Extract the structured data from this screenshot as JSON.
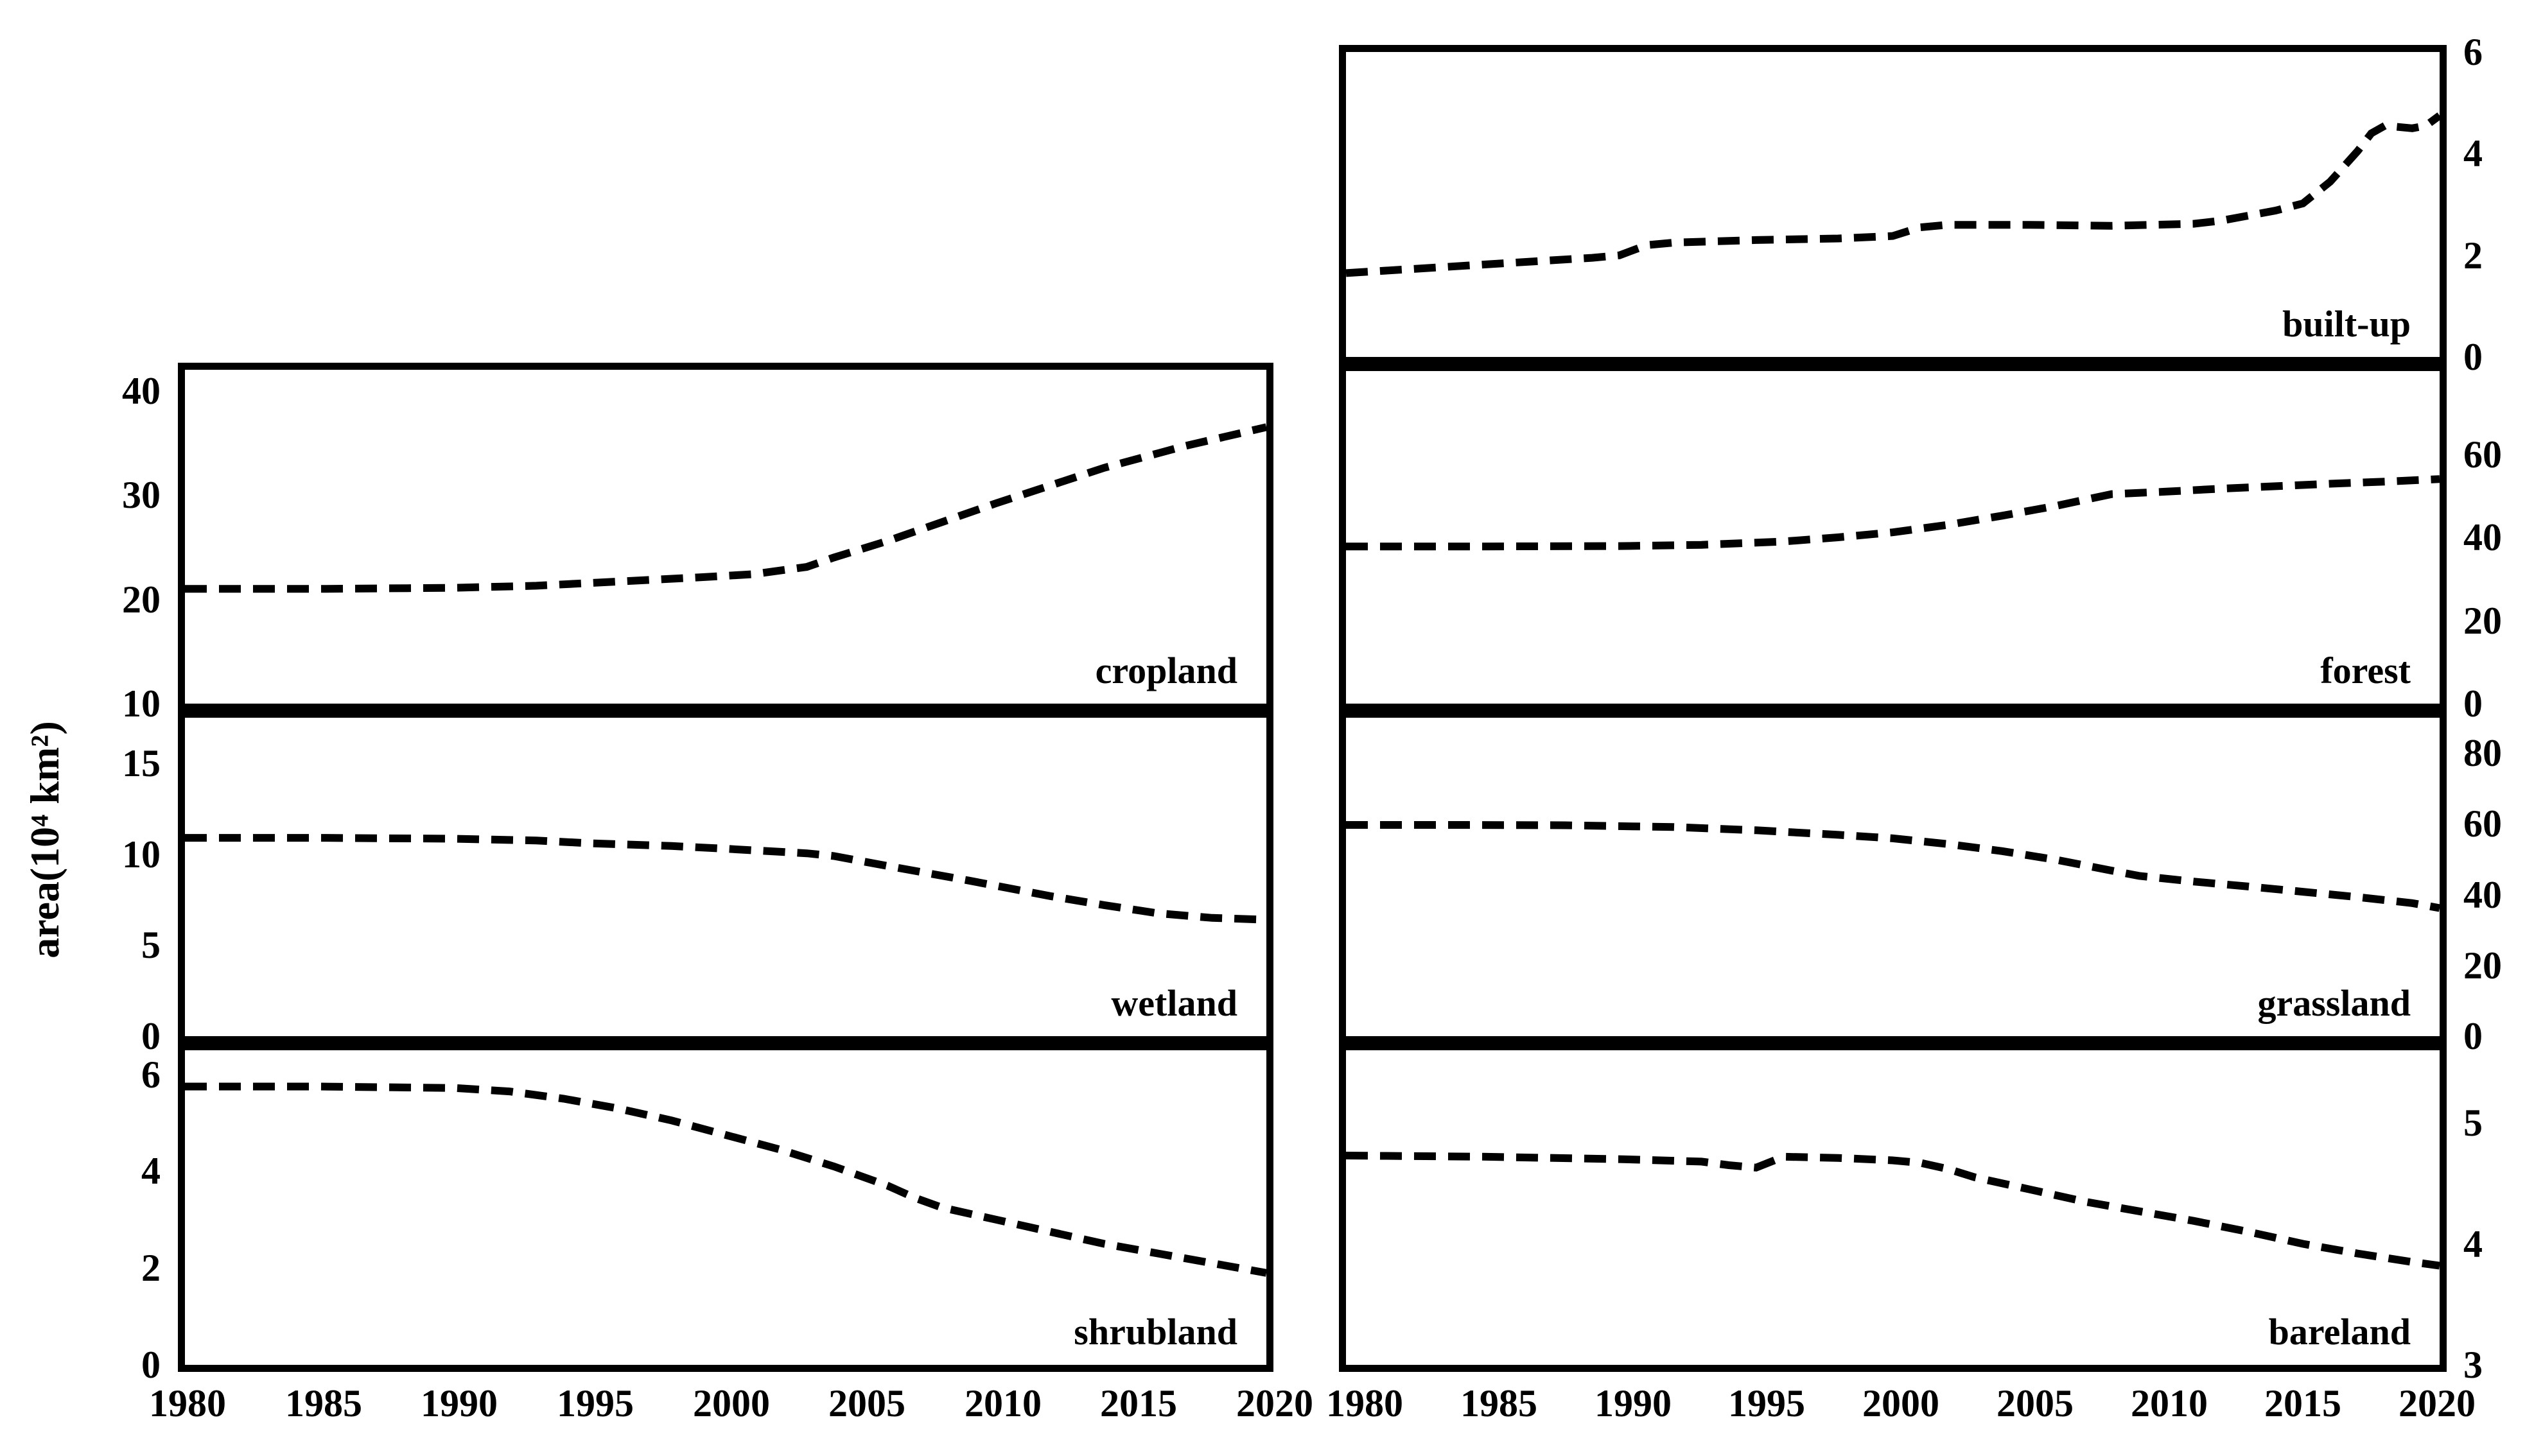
{
  "figure_background": "#ffffff",
  "ylabel": "area(10⁴ km²)",
  "x_axis": {
    "range": [
      1980,
      2020
    ],
    "ticks": [
      1980,
      1985,
      1990,
      1995,
      2000,
      2005,
      2010,
      2015,
      2020
    ]
  },
  "chart_data": [
    {
      "type": "line",
      "panel": "cropland",
      "label": "cropland",
      "axis_side": "left",
      "line_style": "dashed",
      "color": "#000000",
      "ylim": [
        10,
        42
      ],
      "yticks": [
        10,
        20,
        30,
        40
      ],
      "x": [
        1980,
        1985,
        1990,
        1993,
        1996,
        1999,
        2001,
        2003,
        2004,
        2006,
        2008,
        2010,
        2012,
        2014,
        2016,
        2017,
        2018,
        2019,
        2020
      ],
      "y": [
        21.0,
        21.0,
        21.1,
        21.3,
        21.7,
        22.1,
        22.4,
        23.1,
        24.0,
        25.6,
        27.4,
        29.2,
        30.9,
        32.6,
        34.0,
        34.7,
        35.3,
        35.9,
        36.5
      ]
    },
    {
      "type": "line",
      "panel": "wetland",
      "label": "wetland",
      "axis_side": "left",
      "line_style": "dashed",
      "color": "#000000",
      "ylim": [
        0,
        17.5
      ],
      "yticks": [
        0,
        5,
        10,
        15
      ],
      "x": [
        1980,
        1985,
        1990,
        1993,
        1995,
        1998,
        2000,
        2003,
        2004,
        2006,
        2009,
        2012,
        2014,
        2016,
        2018,
        2020
      ],
      "y": [
        10.9,
        10.9,
        10.85,
        10.75,
        10.6,
        10.45,
        10.3,
        10.05,
        9.9,
        9.35,
        8.55,
        7.7,
        7.2,
        6.75,
        6.5,
        6.4
      ]
    },
    {
      "type": "line",
      "panel": "shrubland",
      "label": "shrubland",
      "axis_side": "left",
      "line_style": "dashed",
      "color": "#000000",
      "ylim": [
        0,
        6.5
      ],
      "yticks": [
        0,
        2,
        4,
        6
      ],
      "x": [
        1980,
        1985,
        1990,
        1992,
        1994,
        1996,
        1998,
        2000,
        2002,
        2004,
        2005,
        2006,
        2007,
        2008,
        2010,
        2012,
        2014,
        2016,
        2018,
        2020
      ],
      "y": [
        5.75,
        5.75,
        5.72,
        5.65,
        5.5,
        5.3,
        5.05,
        4.75,
        4.45,
        4.1,
        3.9,
        3.7,
        3.45,
        3.25,
        3.0,
        2.75,
        2.5,
        2.3,
        2.1,
        1.9
      ]
    },
    {
      "type": "line",
      "panel": "built-up",
      "label": "built-up",
      "axis_side": "right",
      "line_style": "dashed",
      "color": "#000000",
      "ylim": [
        0,
        6
      ],
      "yticks": [
        0,
        2,
        4,
        6
      ],
      "x": [
        1980,
        1983,
        1986,
        1989,
        1990,
        1991,
        1992,
        1995,
        1998,
        2000,
        2001,
        2002,
        2005,
        2008,
        2011,
        2012,
        2013,
        2014,
        2015,
        2016,
        2017,
        2017.5,
        2018,
        2019,
        2019.5,
        2020
      ],
      "y": [
        1.65,
        1.75,
        1.85,
        1.95,
        2.0,
        2.2,
        2.25,
        2.3,
        2.33,
        2.38,
        2.55,
        2.6,
        2.6,
        2.58,
        2.62,
        2.68,
        2.78,
        2.88,
        3.02,
        3.45,
        4.05,
        4.4,
        4.55,
        4.5,
        4.55,
        4.75
      ]
    },
    {
      "type": "line",
      "panel": "forest",
      "label": "forest",
      "axis_side": "right",
      "line_style": "dashed",
      "color": "#000000",
      "ylim": [
        0,
        80
      ],
      "yticks": [
        0,
        20,
        40,
        60
      ],
      "x": [
        1980,
        1985,
        1990,
        1993,
        1996,
        1998,
        2000,
        2002,
        2004,
        2006,
        2007,
        2008,
        2010,
        2012,
        2014,
        2016,
        2018,
        2020
      ],
      "y": [
        37.8,
        37.8,
        37.9,
        38.2,
        39.0,
        40.0,
        41.2,
        43.0,
        45.2,
        47.6,
        49.0,
        50.4,
        51.0,
        51.7,
        52.3,
        52.9,
        53.4,
        54.0
      ]
    },
    {
      "type": "line",
      "panel": "grassland",
      "label": "grassland",
      "axis_side": "right",
      "line_style": "dashed",
      "color": "#000000",
      "ylim": [
        0,
        90
      ],
      "yticks": [
        0,
        20,
        40,
        60,
        80
      ],
      "x": [
        1980,
        1984,
        1988,
        1992,
        1995,
        1998,
        2000,
        2002,
        2004,
        2006,
        2008,
        2009,
        2011,
        2013,
        2015,
        2017,
        2019,
        2020
      ],
      "y": [
        59.7,
        59.7,
        59.6,
        59.1,
        58.2,
        56.9,
        55.9,
        54.3,
        52.3,
        49.8,
        46.8,
        45.3,
        43.7,
        42.3,
        40.8,
        39.3,
        37.6,
        36.2
      ]
    },
    {
      "type": "line",
      "panel": "bareland",
      "label": "bareland",
      "axis_side": "right",
      "line_style": "dashed",
      "color": "#000000",
      "ylim": [
        3,
        5.6
      ],
      "yticks": [
        3,
        4,
        5
      ],
      "x": [
        1980,
        1985,
        1990,
        1993,
        1994,
        1995,
        1996,
        1998,
        2000,
        2001,
        2002,
        2003,
        2005,
        2007,
        2009,
        2011,
        2013,
        2015,
        2017,
        2019,
        2020
      ],
      "y": [
        4.73,
        4.72,
        4.7,
        4.68,
        4.65,
        4.63,
        4.72,
        4.71,
        4.69,
        4.67,
        4.62,
        4.55,
        4.45,
        4.35,
        4.27,
        4.19,
        4.1,
        4.0,
        3.92,
        3.85,
        3.82
      ]
    }
  ]
}
